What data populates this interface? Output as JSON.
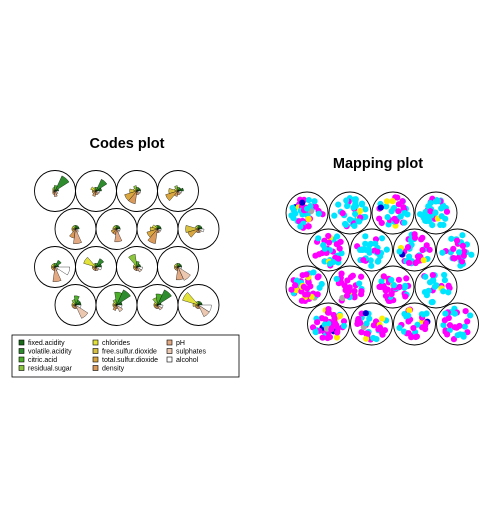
{
  "chart_data": [
    {
      "type": "som-codes",
      "title": "Codes plot",
      "grid": {
        "rows": 4,
        "cols": 4,
        "topology": "hexagonal"
      },
      "variables": [
        {
          "name": "fixed.acidity",
          "color": "#1a6b1a"
        },
        {
          "name": "volatile.acidity",
          "color": "#2e8b2e"
        },
        {
          "name": "citric.acid",
          "color": "#4caf2a"
        },
        {
          "name": "residual.sugar",
          "color": "#8cc63f"
        },
        {
          "name": "chlorides",
          "color": "#e2e23a"
        },
        {
          "name": "free.sulfur.dioxide",
          "color": "#d8c040"
        },
        {
          "name": "total.sulfur.dioxide",
          "color": "#d9a640"
        },
        {
          "name": "density",
          "color": "#d99a5a"
        },
        {
          "name": "pH",
          "color": "#e2a982"
        },
        {
          "name": "sulphates",
          "color": "#edc8b0"
        },
        {
          "name": "alcohol",
          "color": "#ffffff"
        }
      ],
      "codes": [
        [
          0.2,
          0.9,
          0.3,
          0.2,
          0.15,
          0.1,
          0.15,
          0.2,
          0.3,
          0.2,
          0.1
        ],
        [
          0.3,
          0.7,
          0.2,
          0.2,
          0.3,
          0.2,
          0.2,
          0.3,
          0.2,
          0.2,
          0.2
        ],
        [
          0.2,
          0.2,
          0.2,
          0.3,
          0.2,
          0.4,
          0.7,
          0.7,
          0.2,
          0.2,
          0.2
        ],
        [
          0.3,
          0.2,
          0.2,
          0.3,
          0.2,
          0.5,
          0.7,
          0.3,
          0.2,
          0.2,
          0.2
        ],
        [
          0.2,
          0.2,
          0.2,
          0.2,
          0.2,
          0.2,
          0.2,
          0.5,
          0.8,
          0.2,
          0.1
        ],
        [
          0.2,
          0.2,
          0.2,
          0.2,
          0.2,
          0.2,
          0.3,
          0.3,
          0.7,
          0.2,
          0.2
        ],
        [
          0.2,
          0.2,
          0.2,
          0.2,
          0.3,
          0.4,
          0.6,
          0.8,
          0.2,
          0.2,
          0.2
        ],
        [
          0.2,
          0.2,
          0.2,
          0.2,
          0.2,
          0.7,
          0.6,
          0.2,
          0.2,
          0.2,
          0.3
        ],
        [
          0.2,
          0.4,
          0.2,
          0.2,
          0.2,
          0.2,
          0.2,
          0.2,
          0.8,
          0.2,
          0.8
        ],
        [
          0.3,
          0.5,
          0.2,
          0.2,
          0.7,
          0.2,
          0.2,
          0.2,
          0.2,
          0.2,
          0.3
        ],
        [
          0.2,
          0.2,
          0.3,
          0.7,
          0.2,
          0.2,
          0.2,
          0.2,
          0.2,
          0.3,
          0.3
        ],
        [
          0.2,
          0.2,
          0.2,
          0.2,
          0.2,
          0.2,
          0.2,
          0.2,
          0.7,
          0.8,
          0.2
        ],
        [
          0.3,
          0.3,
          0.5,
          0.3,
          0.2,
          0.2,
          0.2,
          0.2,
          0.2,
          0.8,
          0.3
        ],
        [
          0.3,
          0.9,
          0.7,
          0.3,
          0.2,
          0.2,
          0.2,
          0.3,
          0.2,
          0.4,
          0.3
        ],
        [
          0.2,
          0.9,
          0.6,
          0.4,
          0.2,
          0.2,
          0.2,
          0.2,
          0.2,
          0.3,
          0.3
        ],
        [
          0.2,
          0.2,
          0.2,
          0.2,
          0.9,
          0.3,
          0.2,
          0.2,
          0.2,
          0.7,
          0.7
        ]
      ],
      "legend": {
        "position": "bottom",
        "columns": 3
      }
    },
    {
      "type": "som-mapping",
      "title": "Mapping plot",
      "grid": {
        "rows": 4,
        "cols": 4,
        "topology": "hexagonal"
      },
      "classes": [
        {
          "color": "#ff00ff"
        },
        {
          "color": "#00e5ff"
        },
        {
          "color": "#ffee00"
        },
        {
          "color": "#0000cc"
        },
        {
          "color": "#a9a9a9"
        }
      ],
      "unit_counts": [
        [
          22,
          18,
          3,
          2,
          1
        ],
        [
          6,
          34,
          2,
          0,
          0
        ],
        [
          14,
          16,
          3,
          1,
          0
        ],
        [
          8,
          30,
          1,
          0,
          0
        ],
        [
          18,
          14,
          2,
          0,
          0
        ],
        [
          8,
          24,
          0,
          0,
          0
        ],
        [
          20,
          16,
          2,
          1,
          0
        ],
        [
          12,
          16,
          0,
          0,
          0
        ],
        [
          24,
          10,
          6,
          0,
          1
        ],
        [
          22,
          4,
          1,
          0,
          1
        ],
        [
          26,
          10,
          3,
          1,
          0
        ],
        [
          6,
          16,
          1,
          0,
          0
        ],
        [
          30,
          10,
          6,
          2,
          1
        ],
        [
          20,
          10,
          3,
          1,
          1
        ],
        [
          18,
          10,
          2,
          1,
          0
        ],
        [
          16,
          12,
          0,
          0,
          0
        ]
      ]
    }
  ]
}
